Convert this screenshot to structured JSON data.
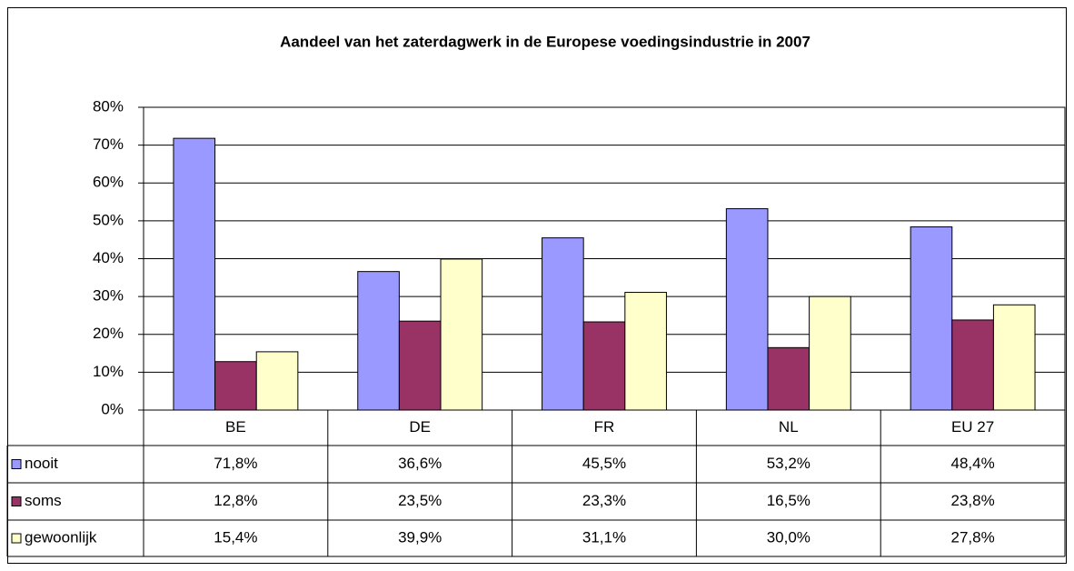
{
  "chart_data": {
    "type": "bar",
    "title": "Aandeel van het zaterdagwerk in de Europese voedingsindustrie in 2007",
    "categories": [
      "BE",
      "DE",
      "FR",
      "NL",
      "EU 27"
    ],
    "series": [
      {
        "name": "nooit",
        "color": "#9999ff",
        "values": [
          71.8,
          36.6,
          45.5,
          53.2,
          48.4
        ],
        "value_labels": [
          "71,8%",
          "36,6%",
          "45,5%",
          "53,2%",
          "48,4%"
        ]
      },
      {
        "name": "soms",
        "color": "#993366",
        "values": [
          12.8,
          23.5,
          23.3,
          16.5,
          23.8
        ],
        "value_labels": [
          "12,8%",
          "23,5%",
          "23,3%",
          "16,5%",
          "23,8%"
        ]
      },
      {
        "name": "gewoonlijk",
        "color": "#ffffcc",
        "values": [
          15.4,
          39.9,
          31.1,
          30.0,
          27.8
        ],
        "value_labels": [
          "15,4%",
          "39,9%",
          "31,1%",
          "30,0%",
          "27,8%"
        ]
      }
    ],
    "ylim": [
      0,
      80
    ],
    "yticks": [
      {
        "value": 0,
        "label": "0%"
      },
      {
        "value": 10,
        "label": "10%"
      },
      {
        "value": 20,
        "label": "20%"
      },
      {
        "value": 30,
        "label": "30%"
      },
      {
        "value": 40,
        "label": "40%"
      },
      {
        "value": 50,
        "label": "50%"
      },
      {
        "value": 60,
        "label": "60%"
      },
      {
        "value": 70,
        "label": "70%"
      },
      {
        "value": 80,
        "label": "80%"
      }
    ],
    "grid": true
  }
}
